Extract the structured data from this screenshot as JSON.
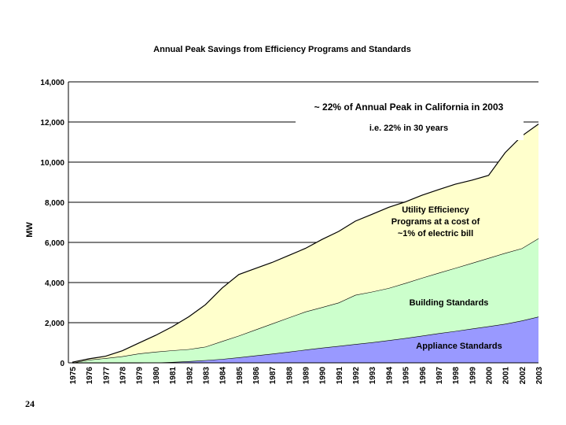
{
  "chart_data": {
    "type": "area",
    "stacked": true,
    "title": "Annual Peak Savings from Efficiency Programs and Standards",
    "xlabel": "",
    "ylabel": "MW",
    "ylim": [
      0,
      14000
    ],
    "yticks": [
      0,
      2000,
      4000,
      6000,
      8000,
      10000,
      12000,
      14000
    ],
    "ytick_labels": [
      "0",
      "2,000",
      "4,000",
      "6,000",
      "8,000",
      "10,000",
      "12,000",
      "14,000"
    ],
    "grid": "horizontal",
    "x": [
      "1975",
      "1976",
      "1977",
      "1978",
      "1979",
      "1980",
      "1981",
      "1982",
      "1983",
      "1984",
      "1985",
      "1986",
      "1987",
      "1988",
      "1989",
      "1990",
      "1991",
      "1992",
      "1993",
      "1994",
      "1995",
      "1996",
      "1997",
      "1998",
      "1999",
      "2000",
      "2001",
      "2002",
      "2003"
    ],
    "series": [
      {
        "name": "Appliance Standards",
        "color": "#9999ff",
        "values": [
          0,
          0,
          0,
          0,
          0,
          10,
          40,
          80,
          130,
          190,
          270,
          360,
          450,
          550,
          650,
          750,
          840,
          930,
          1020,
          1120,
          1230,
          1350,
          1470,
          1580,
          1700,
          1820,
          1940,
          2100,
          2300
        ]
      },
      {
        "name": "Building Standards",
        "color": "#ccffcc",
        "values": [
          0,
          150,
          230,
          320,
          460,
          540,
          580,
          600,
          670,
          890,
          1080,
          1290,
          1500,
          1700,
          1900,
          2020,
          2160,
          2450,
          2520,
          2600,
          2740,
          2880,
          3010,
          3140,
          3270,
          3400,
          3530,
          3600,
          3900
        ]
      },
      {
        "name": "Utility Efficiency Programs at a cost of ~1% of electric bill",
        "color": "#ffffcc",
        "values": [
          30,
          50,
          100,
          280,
          530,
          820,
          1180,
          1620,
          2100,
          2650,
          3050,
          3050,
          3050,
          3100,
          3150,
          3380,
          3550,
          3680,
          3860,
          4030,
          4050,
          4120,
          4150,
          4180,
          4130,
          4120,
          5000,
          5600,
          5700
        ]
      }
    ],
    "annotations": [
      "~  22% of Annual Peak in California in 2003",
      "i.e. 22% in 30 years",
      "Utility Efficiency",
      "Programs at a cost of",
      "~1% of electric bill",
      "Building Standards",
      "Appliance Standards"
    ]
  },
  "slide": {
    "page_number": "24"
  }
}
